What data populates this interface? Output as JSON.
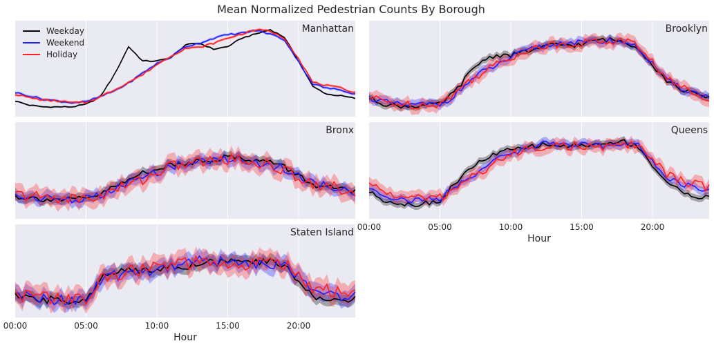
{
  "chart_data": {
    "type": "line",
    "title": "Mean Normalized Pedestrian Counts By Borough",
    "xlabel": "Hour",
    "ylabel": "",
    "x_ticks": [
      "00:00",
      "05:00",
      "10:00",
      "15:00",
      "20:00"
    ],
    "xlim": [
      0,
      24
    ],
    "ylim": [
      0,
      1
    ],
    "grid": true,
    "legend": {
      "placement": "top-left",
      "entries": [
        "Weekday",
        "Weekend",
        "Holiday"
      ]
    },
    "colors": {
      "Weekday": "#000000",
      "Weekend": "#1f1fff",
      "Holiday": "#ff2020",
      "panel_bg": "#eaeaf2",
      "grid": "#ffffff"
    },
    "x": [
      0,
      1,
      2,
      3,
      4,
      5,
      6,
      7,
      8,
      9,
      10,
      11,
      12,
      13,
      14,
      15,
      16,
      17,
      18,
      19,
      20,
      21,
      22,
      23,
      24
    ],
    "panels": [
      {
        "name": "Manhattan",
        "series": [
          {
            "name": "Weekday",
            "values": [
              0.12,
              0.07,
              0.05,
              0.05,
              0.05,
              0.08,
              0.17,
              0.43,
              0.76,
              0.59,
              0.59,
              0.63,
              0.78,
              0.8,
              0.73,
              0.76,
              0.86,
              0.91,
              0.96,
              0.87,
              0.59,
              0.29,
              0.2,
              0.18,
              0.15
            ],
            "band": 0.01
          },
          {
            "name": "Weekend",
            "values": [
              0.22,
              0.18,
              0.14,
              0.12,
              0.1,
              0.11,
              0.17,
              0.24,
              0.33,
              0.45,
              0.56,
              0.64,
              0.76,
              0.8,
              0.86,
              0.9,
              0.92,
              0.95,
              0.91,
              0.84,
              0.58,
              0.32,
              0.27,
              0.25,
              0.2
            ],
            "band": 0.015
          },
          {
            "name": "Holiday",
            "values": [
              0.2,
              0.16,
              0.13,
              0.12,
              0.1,
              0.1,
              0.17,
              0.25,
              0.34,
              0.43,
              0.55,
              0.65,
              0.74,
              0.75,
              0.8,
              0.86,
              0.91,
              0.96,
              0.94,
              0.86,
              0.62,
              0.34,
              0.3,
              0.27,
              0.22
            ],
            "band": 0.015
          }
        ]
      },
      {
        "name": "Brooklyn",
        "series": [
          {
            "name": "Weekday",
            "values": [
              0.15,
              0.09,
              0.06,
              0.06,
              0.07,
              0.08,
              0.22,
              0.43,
              0.6,
              0.66,
              0.66,
              0.7,
              0.74,
              0.78,
              0.78,
              0.78,
              0.84,
              0.84,
              0.82,
              0.75,
              0.54,
              0.36,
              0.26,
              0.2,
              0.15
            ],
            "band": 0.04
          },
          {
            "name": "Weekend",
            "values": [
              0.16,
              0.11,
              0.08,
              0.07,
              0.08,
              0.08,
              0.18,
              0.34,
              0.46,
              0.54,
              0.63,
              0.7,
              0.76,
              0.78,
              0.82,
              0.8,
              0.82,
              0.83,
              0.82,
              0.74,
              0.56,
              0.36,
              0.27,
              0.22,
              0.16
            ],
            "band": 0.05
          },
          {
            "name": "Holiday",
            "values": [
              0.16,
              0.12,
              0.09,
              0.07,
              0.08,
              0.09,
              0.2,
              0.35,
              0.46,
              0.55,
              0.63,
              0.72,
              0.75,
              0.78,
              0.8,
              0.8,
              0.82,
              0.82,
              0.84,
              0.76,
              0.58,
              0.38,
              0.28,
              0.22,
              0.16
            ],
            "band": 0.07
          }
        ]
      },
      {
        "name": "Bronx",
        "series": [
          {
            "name": "Weekday",
            "values": [
              0.2,
              0.18,
              0.17,
              0.16,
              0.16,
              0.17,
              0.22,
              0.31,
              0.38,
              0.48,
              0.52,
              0.56,
              0.58,
              0.62,
              0.63,
              0.66,
              0.65,
              0.62,
              0.6,
              0.54,
              0.44,
              0.34,
              0.3,
              0.28,
              0.25
            ],
            "band": 0.05
          },
          {
            "name": "Weekend",
            "values": [
              0.2,
              0.19,
              0.18,
              0.17,
              0.16,
              0.17,
              0.2,
              0.28,
              0.35,
              0.42,
              0.48,
              0.55,
              0.58,
              0.6,
              0.62,
              0.64,
              0.62,
              0.6,
              0.56,
              0.52,
              0.44,
              0.36,
              0.32,
              0.28,
              0.25
            ],
            "band": 0.07
          },
          {
            "name": "Holiday",
            "values": [
              0.22,
              0.2,
              0.19,
              0.18,
              0.17,
              0.17,
              0.2,
              0.27,
              0.34,
              0.4,
              0.48,
              0.55,
              0.58,
              0.6,
              0.62,
              0.64,
              0.62,
              0.6,
              0.56,
              0.5,
              0.42,
              0.36,
              0.32,
              0.28,
              0.26
            ],
            "band": 0.1
          }
        ]
      },
      {
        "name": "Queens",
        "series": [
          {
            "name": "Weekday",
            "values": [
              0.25,
              0.16,
              0.12,
              0.1,
              0.12,
              0.14,
              0.34,
              0.5,
              0.62,
              0.7,
              0.74,
              0.76,
              0.8,
              0.8,
              0.78,
              0.8,
              0.8,
              0.82,
              0.84,
              0.78,
              0.56,
              0.36,
              0.26,
              0.2,
              0.18
            ],
            "band": 0.04
          },
          {
            "name": "Weekend",
            "values": [
              0.3,
              0.22,
              0.17,
              0.15,
              0.16,
              0.17,
              0.3,
              0.42,
              0.52,
              0.62,
              0.7,
              0.76,
              0.8,
              0.82,
              0.8,
              0.8,
              0.78,
              0.8,
              0.82,
              0.8,
              0.6,
              0.42,
              0.34,
              0.3,
              0.26
            ],
            "band": 0.05
          },
          {
            "name": "Holiday",
            "values": [
              0.34,
              0.26,
              0.2,
              0.18,
              0.18,
              0.18,
              0.28,
              0.4,
              0.5,
              0.6,
              0.68,
              0.74,
              0.78,
              0.8,
              0.78,
              0.78,
              0.76,
              0.78,
              0.8,
              0.8,
              0.62,
              0.46,
              0.38,
              0.34,
              0.3
            ],
            "band": 0.07
          }
        ]
      },
      {
        "name": "Staten Island",
        "series": [
          {
            "name": "Weekday",
            "values": [
              0.18,
              0.16,
              0.15,
              0.14,
              0.14,
              0.16,
              0.4,
              0.48,
              0.5,
              0.52,
              0.54,
              0.55,
              0.56,
              0.58,
              0.6,
              0.62,
              0.6,
              0.6,
              0.62,
              0.56,
              0.38,
              0.2,
              0.16,
              0.15,
              0.15
            ],
            "band": 0.07
          },
          {
            "name": "Weekend",
            "values": [
              0.2,
              0.18,
              0.16,
              0.15,
              0.15,
              0.16,
              0.36,
              0.44,
              0.48,
              0.5,
              0.52,
              0.56,
              0.6,
              0.64,
              0.62,
              0.6,
              0.58,
              0.58,
              0.6,
              0.58,
              0.42,
              0.26,
              0.22,
              0.2,
              0.2
            ],
            "band": 0.1
          },
          {
            "name": "Holiday",
            "values": [
              0.22,
              0.2,
              0.18,
              0.17,
              0.16,
              0.14,
              0.38,
              0.46,
              0.5,
              0.52,
              0.54,
              0.58,
              0.58,
              0.6,
              0.58,
              0.56,
              0.56,
              0.58,
              0.62,
              0.6,
              0.46,
              0.3,
              0.26,
              0.22,
              0.24
            ],
            "band": 0.12
          }
        ]
      }
    ]
  }
}
